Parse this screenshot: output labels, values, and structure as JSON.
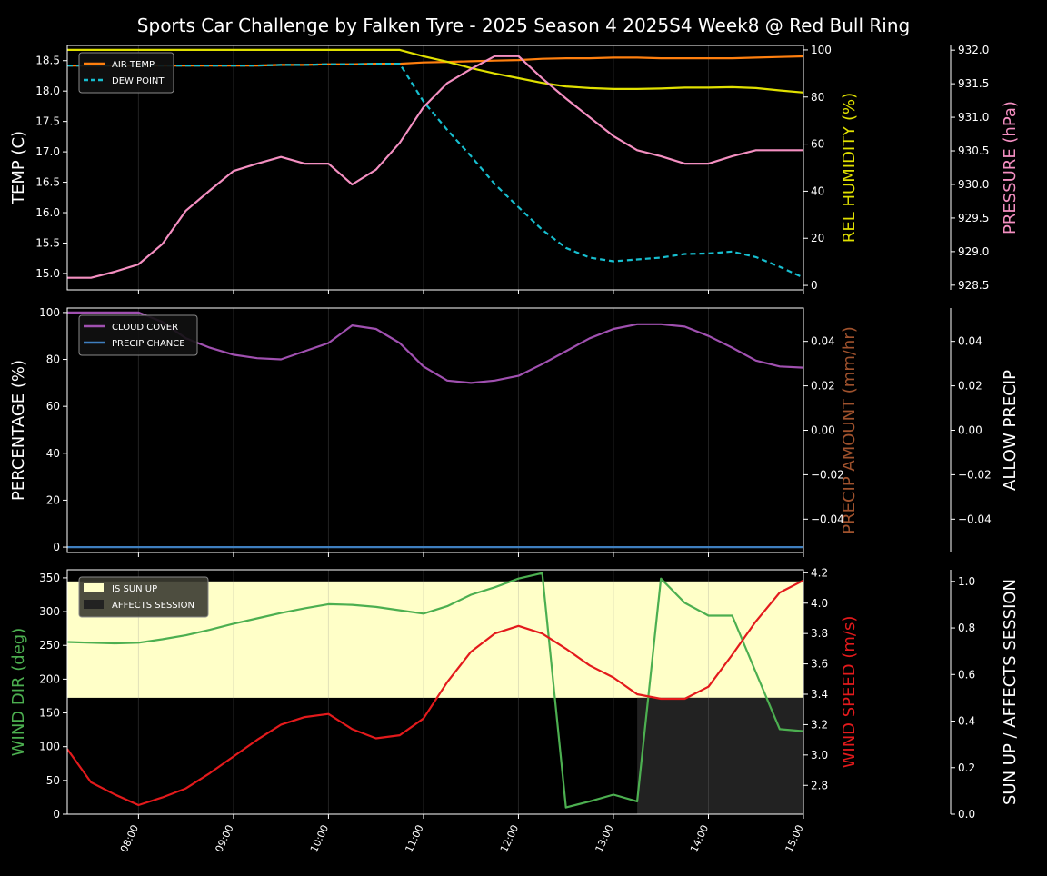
{
  "title": "Sports Car Challenge by Falken Tyre - 2025 Season 4 2025S4 Week8 @ Red Bull Ring",
  "colors": {
    "background": "#000000",
    "air_temp": "#ff7f0e",
    "dew_point": "#17becf",
    "humidity": "#e0e000",
    "pressure": "#f48fc1",
    "cloud_cover": "#a050b0",
    "precip_chance": "#3f7fbf",
    "precip_amount_label": "#a0522d",
    "wind_dir": "#4caf50",
    "wind_speed": "#e31a1c",
    "sun_up": "#ffffc8",
    "affects_session": "#222222"
  },
  "chart_data": [
    {
      "type": "line",
      "x": [
        "07:15",
        "07:30",
        "07:45",
        "08:00",
        "08:15",
        "08:30",
        "08:45",
        "09:00",
        "09:15",
        "09:30",
        "09:45",
        "10:00",
        "10:15",
        "10:30",
        "10:45",
        "11:00",
        "11:15",
        "11:30",
        "11:45",
        "12:00",
        "12:15",
        "12:30",
        "12:45",
        "13:00",
        "13:15",
        "13:30",
        "13:45",
        "14:00",
        "14:15",
        "14:30",
        "14:45",
        "15:00"
      ],
      "xticks": [
        "08:00",
        "09:00",
        "10:00",
        "11:00",
        "12:00",
        "13:00",
        "14:00",
        "15:00"
      ],
      "ylabel": "TEMP (C)",
      "ylim": [
        14.73,
        18.75
      ],
      "yticks": [
        "15.0",
        "15.5",
        "16.0",
        "16.5",
        "17.0",
        "17.5",
        "18.0",
        "18.5"
      ],
      "y2label": "REL HUMIDITY (%)",
      "y2lim": [
        -1.9,
        101.9
      ],
      "y2ticks": [
        "0",
        "20",
        "40",
        "60",
        "80",
        "100"
      ],
      "y3label": "PRESSURE (hPa)",
      "y3lim": [
        928.43,
        932.07
      ],
      "y3ticks": [
        "928.5",
        "929.0",
        "929.5",
        "930.0",
        "930.5",
        "931.0",
        "931.5",
        "932.0"
      ],
      "legend": "top-left",
      "series": [
        {
          "name": "AIR TEMP",
          "axis": "y",
          "style": "solid",
          "values": [
            18.42,
            18.42,
            18.42,
            18.42,
            18.42,
            18.42,
            18.42,
            18.42,
            18.42,
            18.43,
            18.43,
            18.44,
            18.44,
            18.45,
            18.45,
            18.47,
            18.48,
            18.49,
            18.5,
            18.51,
            18.53,
            18.54,
            18.54,
            18.55,
            18.55,
            18.54,
            18.54,
            18.54,
            18.54,
            18.55,
            18.56,
            18.57
          ]
        },
        {
          "name": "DEW POINT",
          "axis": "y",
          "style": "dashed",
          "values": [
            18.42,
            18.42,
            18.42,
            18.42,
            18.42,
            18.42,
            18.42,
            18.42,
            18.42,
            18.43,
            18.43,
            18.44,
            18.44,
            18.45,
            18.45,
            17.83,
            17.36,
            16.93,
            16.47,
            16.09,
            15.72,
            15.42,
            15.26,
            15.2,
            15.23,
            15.26,
            15.32,
            15.33,
            15.36,
            15.27,
            15.11,
            14.93
          ]
        },
        {
          "axis": "y2",
          "style": "solid",
          "values": [
            100,
            100,
            100,
            100,
            100,
            100,
            100,
            100,
            100,
            100,
            100,
            100,
            100,
            100,
            100,
            97.3,
            95,
            92.3,
            90,
            88,
            86,
            84.5,
            83.8,
            83.4,
            83.4,
            83.6,
            84,
            84,
            84.2,
            83.8,
            82.8,
            81.9
          ]
        },
        {
          "axis": "y3",
          "style": "solid",
          "values": [
            928.61,
            928.61,
            928.7,
            928.81,
            929.11,
            929.61,
            929.91,
            930.2,
            930.31,
            930.41,
            930.31,
            930.31,
            930.0,
            930.22,
            930.62,
            931.15,
            931.51,
            931.72,
            931.91,
            931.91,
            931.58,
            931.28,
            931.0,
            930.72,
            930.51,
            930.42,
            930.31,
            930.31,
            930.42,
            930.51,
            930.51,
            930.51
          ]
        }
      ]
    },
    {
      "type": "line",
      "ylabel": "PERCENTAGE (%)",
      "ylim": [
        -2.3,
        101.9
      ],
      "yticks": [
        "0",
        "20",
        "40",
        "60",
        "80",
        "100"
      ],
      "y2label": "PRECIP AMOUNT (mm/hr)",
      "y2lim": [
        -0.055,
        0.055
      ],
      "y2ticks": [
        "−0.04",
        "−0.02",
        "0.00",
        "0.02",
        "0.04"
      ],
      "y3label": "ALLOW PRECIP",
      "y3lim": [
        -0.055,
        0.055
      ],
      "y3ticks": [
        "−0.04",
        "−0.02",
        "0.00",
        "0.02",
        "0.04"
      ],
      "legend": "top-left",
      "series": [
        {
          "name": "CLOUD COVER",
          "axis": "y",
          "values": [
            100,
            100,
            100,
            100,
            96,
            89,
            85,
            82,
            80.5,
            80,
            83.5,
            87,
            94.5,
            93,
            87,
            77,
            71,
            70,
            71,
            73,
            78,
            83.5,
            89,
            93,
            95,
            95,
            94,
            90,
            85,
            79.5,
            77,
            76.5
          ]
        },
        {
          "name": "PRECIP CHANCE",
          "axis": "y",
          "values": [
            0,
            0,
            0,
            0,
            0,
            0,
            0,
            0,
            0,
            0,
            0,
            0,
            0,
            0,
            0,
            0,
            0,
            0,
            0,
            0,
            0,
            0,
            0,
            0,
            0,
            0,
            0,
            0,
            0,
            0,
            0,
            0
          ]
        }
      ]
    },
    {
      "type": "line",
      "ylabel": "WIND DIR (deg)",
      "ylim": [
        0,
        362
      ],
      "yticks": [
        "0",
        "50",
        "100",
        "150",
        "200",
        "250",
        "300",
        "350"
      ],
      "y2label": "WIND SPEED (m/s)",
      "y2lim": [
        2.61,
        4.22
      ],
      "y2ticks": [
        "2.8",
        "3.0",
        "3.2",
        "3.4",
        "3.6",
        "3.8",
        "4.0",
        "4.2"
      ],
      "y3label": "SUN UP / AFFECTS SESSION",
      "y3lim": [
        0,
        1.05
      ],
      "y3ticks": [
        "0.0",
        "0.2",
        "0.4",
        "0.6",
        "0.8",
        "1.0"
      ],
      "legend": "top-left",
      "areas": [
        {
          "name": "IS SUN UP",
          "from": "07:15",
          "to": "15:00",
          "range": [
            0.5,
            1.0
          ]
        },
        {
          "name": "AFFECTS SESSION",
          "from": "13:15",
          "to": "15:00",
          "range": [
            0,
            0.5
          ]
        }
      ],
      "series": [
        {
          "axis": "y",
          "values": [
            255,
            254,
            253,
            254,
            259,
            265,
            273,
            282,
            290,
            298,
            305,
            311,
            310,
            307,
            302,
            297,
            308,
            325,
            336,
            349,
            357,
            10,
            19,
            29,
            19,
            349,
            313,
            294,
            294,
            210,
            126,
            123
          ]
        },
        {
          "axis": "y2",
          "values": [
            3.04,
            2.82,
            2.74,
            2.67,
            2.72,
            2.78,
            2.88,
            2.99,
            3.1,
            3.2,
            3.25,
            3.27,
            3.17,
            3.11,
            3.13,
            3.24,
            3.48,
            3.68,
            3.8,
            3.85,
            3.8,
            3.7,
            3.59,
            3.51,
            3.4,
            3.37,
            3.37,
            3.45,
            3.66,
            3.88,
            4.07,
            4.15
          ]
        }
      ]
    }
  ]
}
